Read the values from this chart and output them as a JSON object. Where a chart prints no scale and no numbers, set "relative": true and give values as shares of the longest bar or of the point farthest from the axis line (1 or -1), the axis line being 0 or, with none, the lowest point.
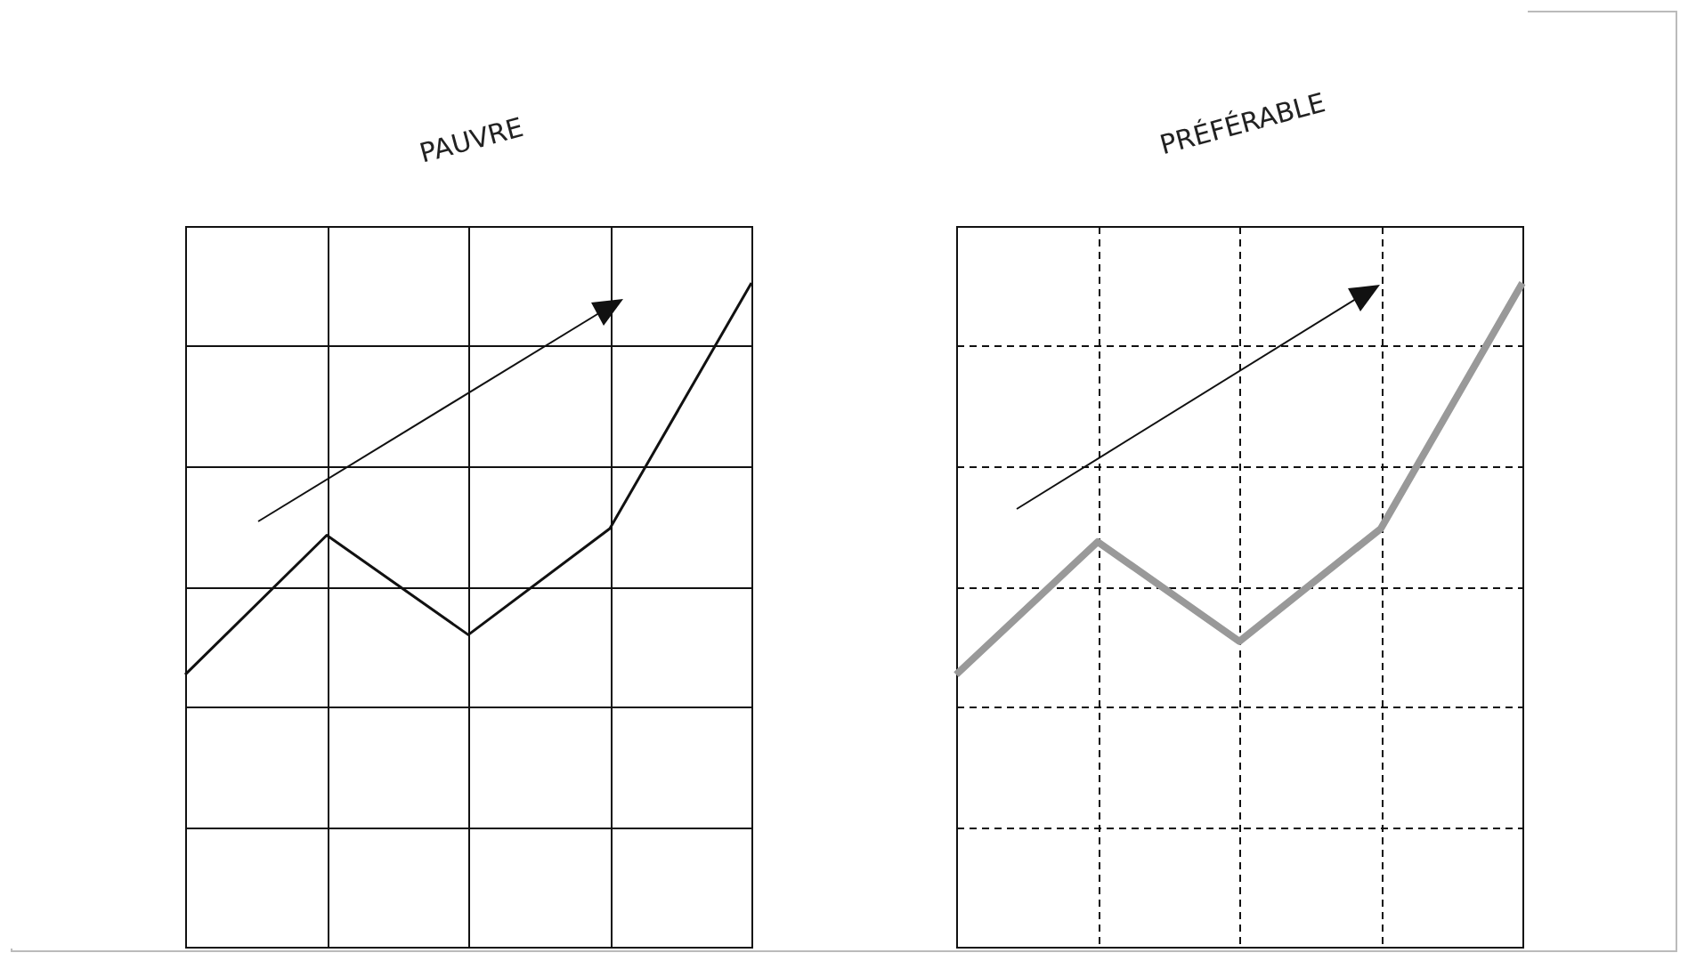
{
  "chart_data": [
    {
      "type": "line",
      "title": "PAUVRE",
      "relative": true,
      "categories": [
        null,
        null,
        null,
        null,
        null
      ],
      "grid": true,
      "series": [
        {
          "color": "#111111",
          "values": [
            0.41,
            0.62,
            0.47,
            0.63,
            1.0
          ]
        }
      ]
    },
    {
      "type": "line",
      "title": "PRÉFÉRABLE",
      "relative": true,
      "categories": [
        null,
        null,
        null,
        null,
        null
      ],
      "grid": true,
      "series": [
        {
          "color": "#999999",
          "values": [
            0.41,
            0.61,
            0.46,
            0.63,
            1.0
          ]
        }
      ]
    }
  ]
}
